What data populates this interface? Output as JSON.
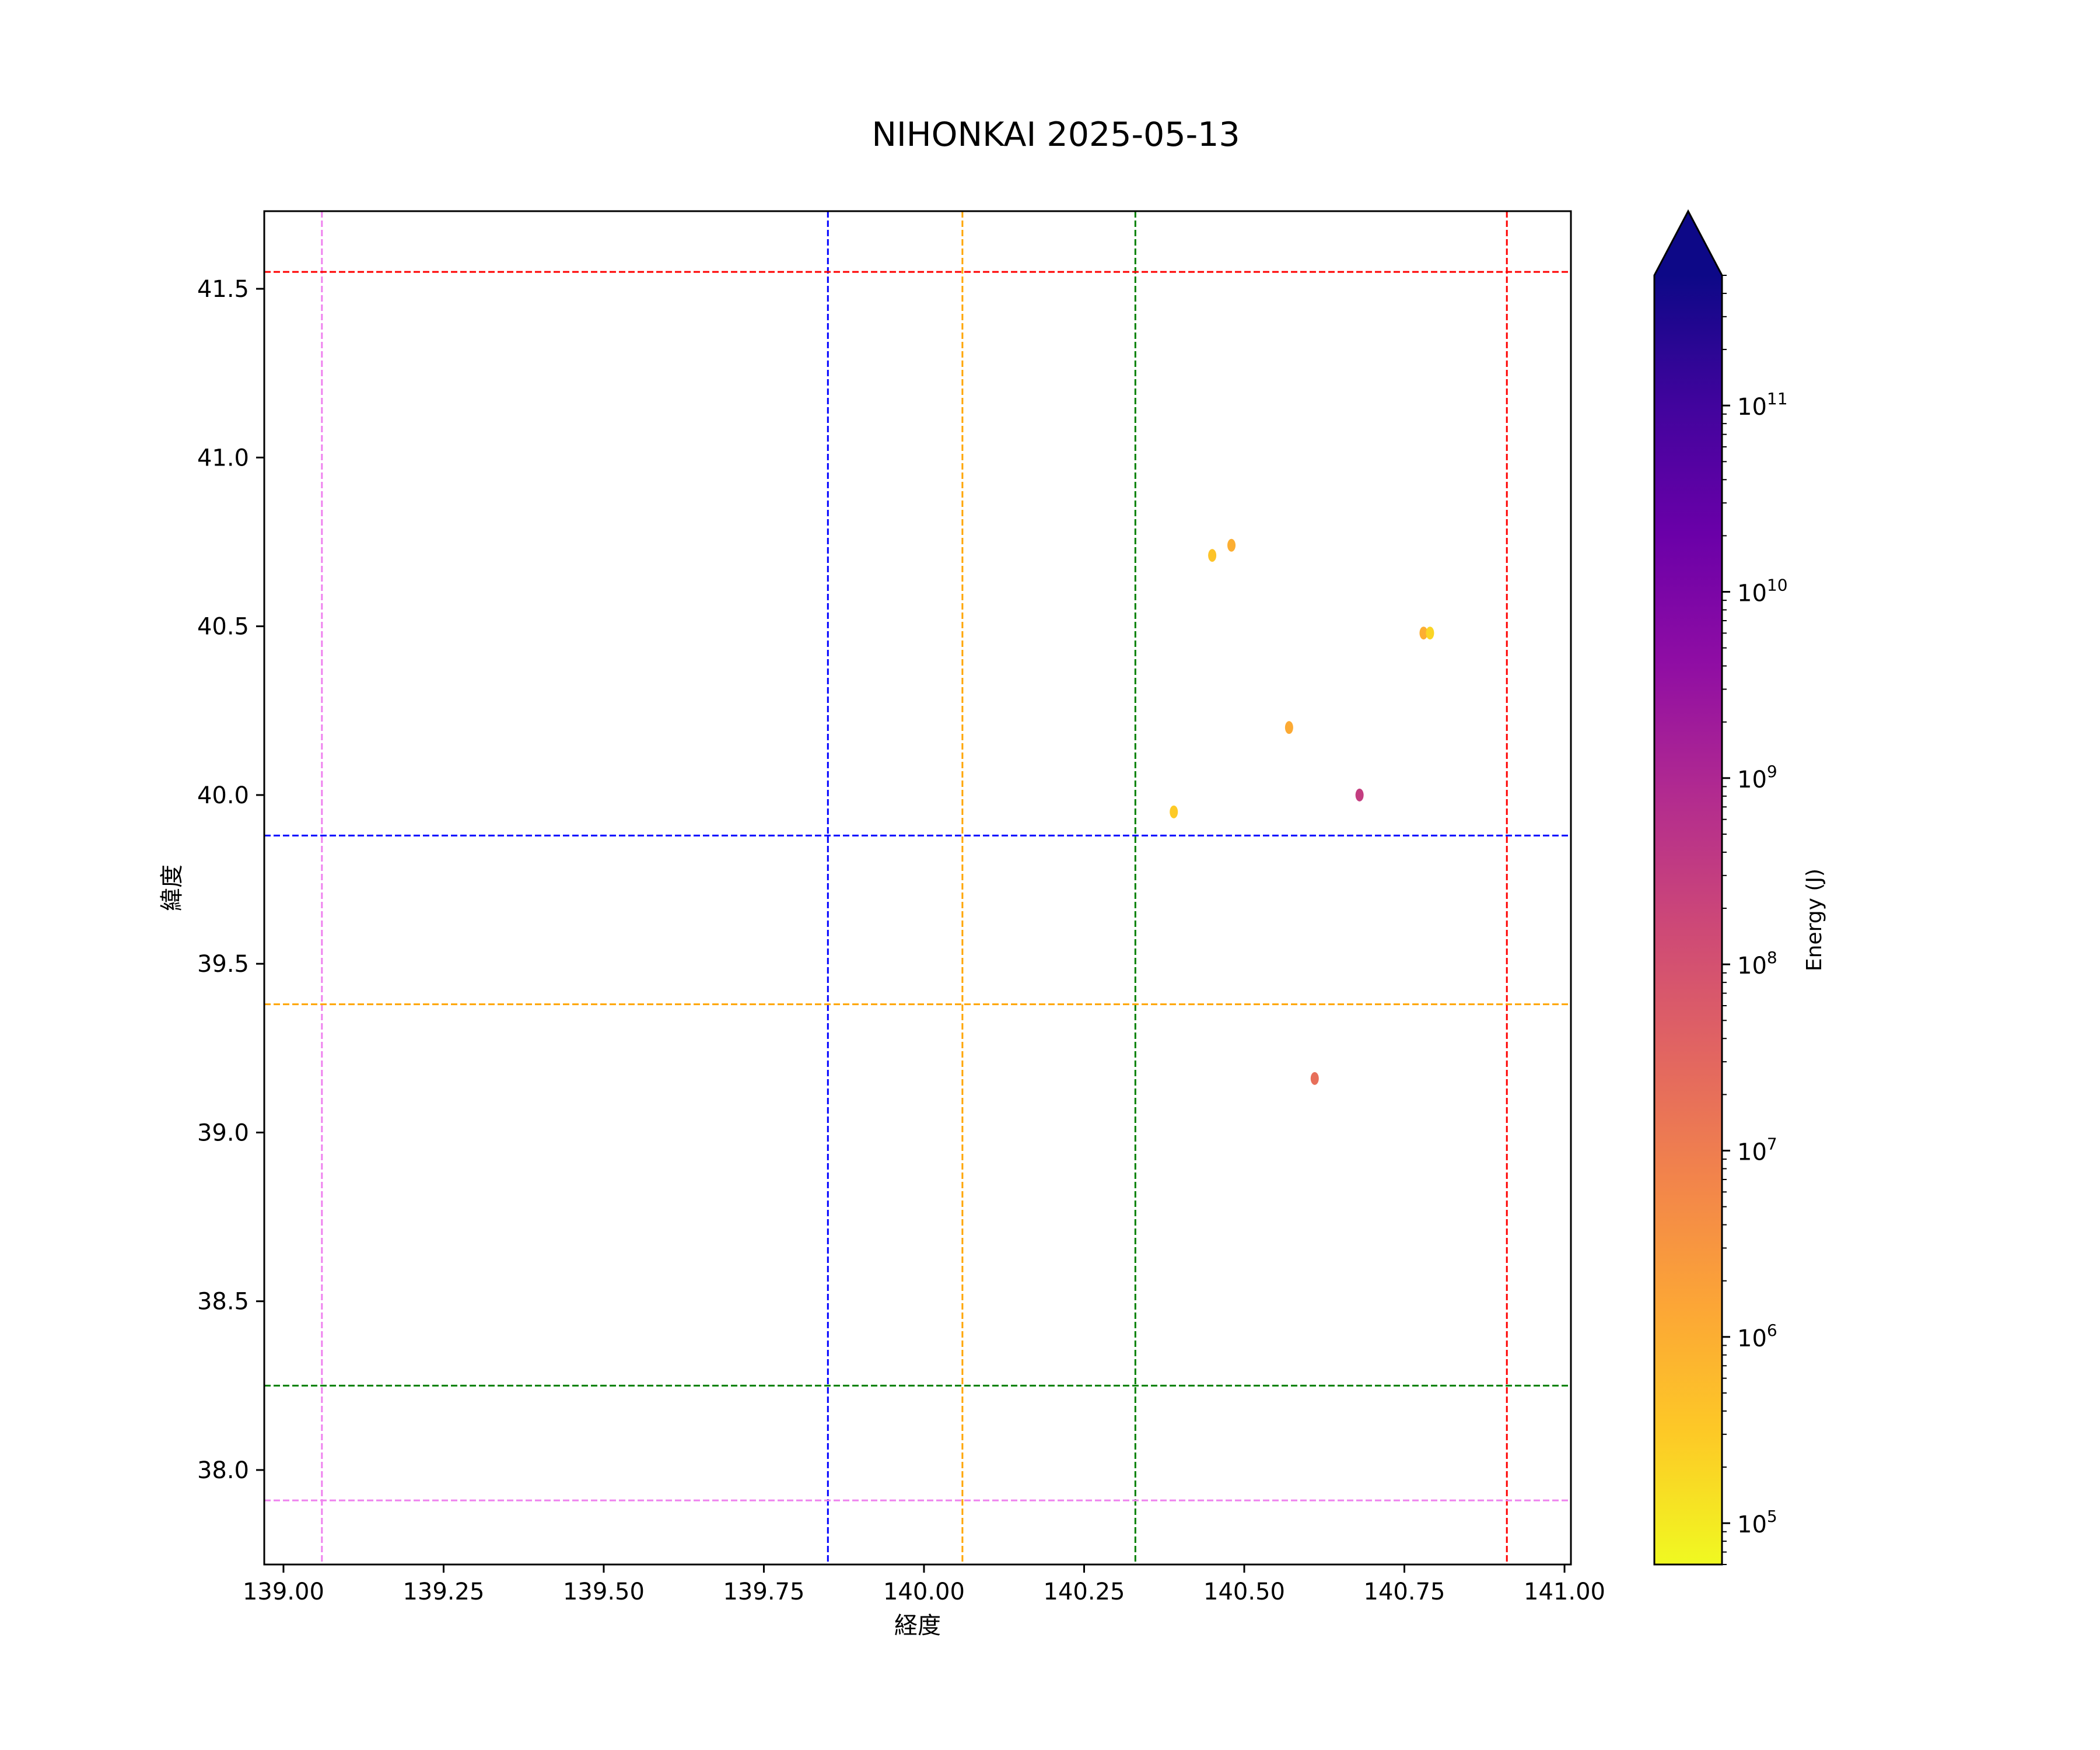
{
  "chart_data": {
    "type": "scatter",
    "title": "NIHONKAI 2025-05-13",
    "xlabel": "経度",
    "ylabel": "緯度",
    "xlim": [
      138.97,
      141.01
    ],
    "ylim": [
      37.72,
      41.73
    ],
    "x_ticks": [
      139.0,
      139.25,
      139.5,
      139.75,
      140.0,
      140.25,
      140.5,
      140.75,
      141.0
    ],
    "x_tick_labels": [
      "139.00",
      "139.25",
      "139.50",
      "139.75",
      "140.00",
      "140.25",
      "140.50",
      "140.75",
      "141.00"
    ],
    "y_ticks": [
      38.0,
      38.5,
      39.0,
      39.5,
      40.0,
      40.5,
      41.0,
      41.5
    ],
    "y_tick_labels": [
      "38.0",
      "38.5",
      "39.0",
      "39.5",
      "40.0",
      "40.5",
      "41.0",
      "41.5"
    ],
    "grid": false,
    "reference_lines": [
      {
        "orientation": "vertical",
        "value": 139.06,
        "color": "#ee82ee"
      },
      {
        "orientation": "vertical",
        "value": 139.85,
        "color": "#0000ff"
      },
      {
        "orientation": "vertical",
        "value": 140.06,
        "color": "#ffa500"
      },
      {
        "orientation": "vertical",
        "value": 140.33,
        "color": "#008000"
      },
      {
        "orientation": "vertical",
        "value": 140.91,
        "color": "#ff0000"
      },
      {
        "orientation": "horizontal",
        "value": 41.55,
        "color": "#ff0000"
      },
      {
        "orientation": "horizontal",
        "value": 39.88,
        "color": "#0000ff"
      },
      {
        "orientation": "horizontal",
        "value": 39.38,
        "color": "#ffa500"
      },
      {
        "orientation": "horizontal",
        "value": 38.25,
        "color": "#008000"
      },
      {
        "orientation": "horizontal",
        "value": 37.91,
        "color": "#ee82ee"
      }
    ],
    "points": [
      {
        "x": 140.45,
        "y": 40.71,
        "energy": 400000
      },
      {
        "x": 140.48,
        "y": 40.74,
        "energy": 1000000
      },
      {
        "x": 140.78,
        "y": 40.48,
        "energy": 1000000
      },
      {
        "x": 140.79,
        "y": 40.48,
        "energy": 200000
      },
      {
        "x": 140.57,
        "y": 40.2,
        "energy": 1200000
      },
      {
        "x": 140.39,
        "y": 39.95,
        "energy": 300000
      },
      {
        "x": 140.68,
        "y": 40.0,
        "energy": 300000000
      },
      {
        "x": 140.61,
        "y": 39.16,
        "energy": 20000000
      }
    ],
    "colorbar": {
      "label": "Energy (J)",
      "scale": "log",
      "cmap": "plasma",
      "range": [
        60000,
        500000000000
      ],
      "extend": "max",
      "tick_values": [
        100000,
        1000000,
        10000000,
        100000000,
        1000000000,
        10000000000,
        100000000000
      ],
      "tick_bases": [
        "10",
        "10",
        "10",
        "10",
        "10",
        "10",
        "10"
      ],
      "tick_exponents": [
        "5",
        "6",
        "7",
        "8",
        "9",
        "10",
        "11"
      ]
    }
  }
}
